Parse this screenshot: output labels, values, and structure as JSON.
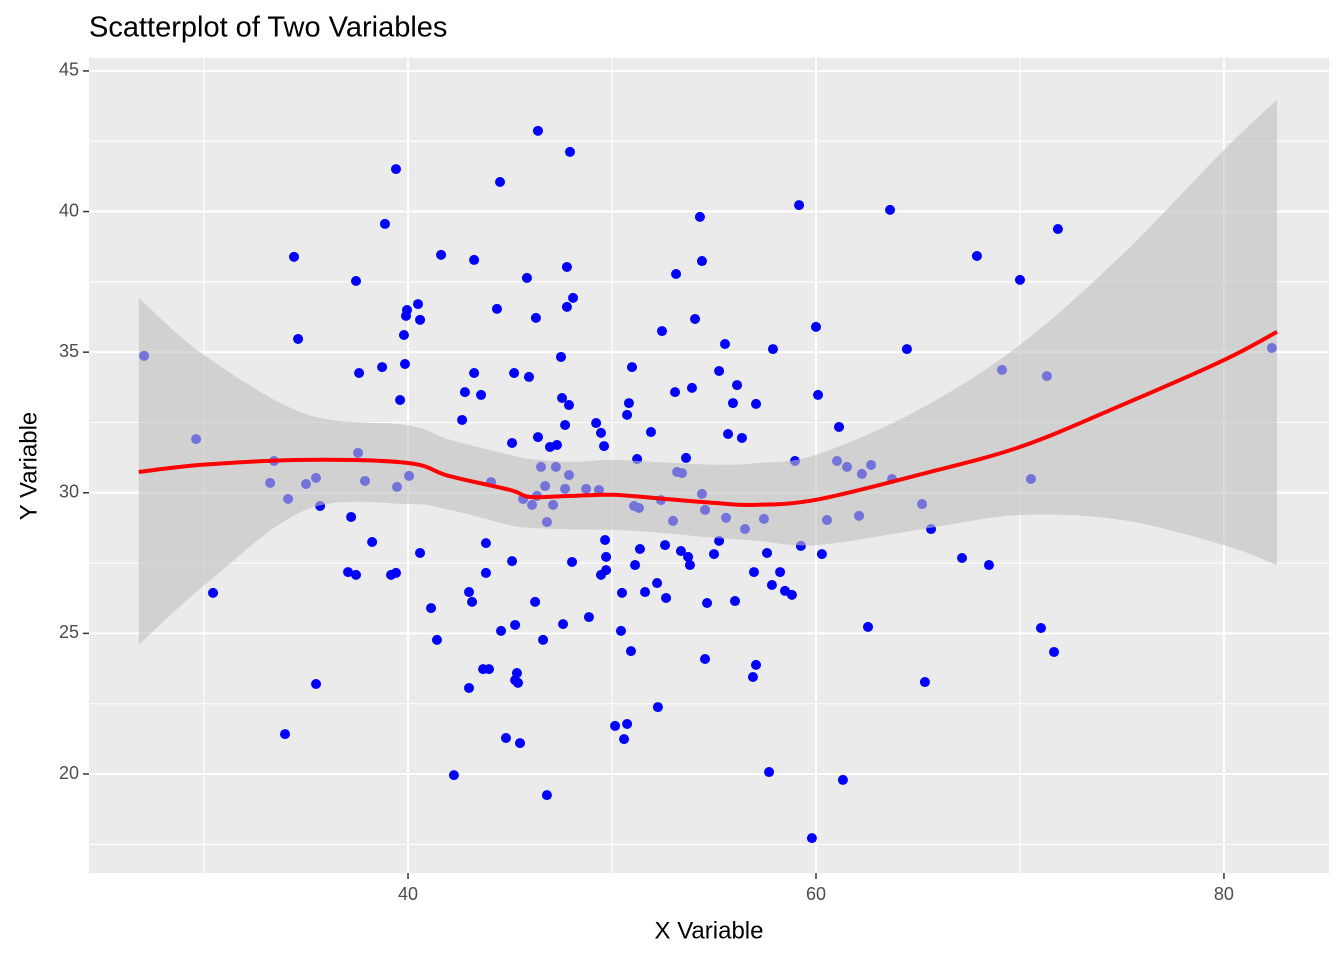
{
  "chart_data": {
    "type": "scatter",
    "title": "Scatterplot of Two Variables",
    "xlabel": "X Variable",
    "ylabel": "Y Variable",
    "color": "#0000ff",
    "grid": true,
    "xlim": [
      24.36,
      85.15
    ],
    "ylim": [
      16.48,
      45.46
    ],
    "xticks": [
      40,
      60,
      80
    ],
    "yticks": [
      20,
      25,
      30,
      35,
      40,
      45
    ],
    "xminorticks": [
      30,
      50,
      70
    ],
    "yminorticks": [
      17.5,
      22.5,
      27.5,
      32.5,
      37.5,
      42.5
    ],
    "x": [
      27.06,
      29.61,
      30.44,
      33.24,
      33.43,
      33.97,
      34.12,
      34.41,
      34.61,
      35.0,
      35.49,
      35.49,
      35.69,
      37.06,
      37.21,
      37.45,
      37.45,
      37.55,
      37.6,
      37.89,
      38.24,
      38.73,
      38.87,
      39.17,
      39.41,
      39.41,
      39.46,
      39.61,
      39.8,
      39.85,
      39.9,
      39.95,
      40.05,
      40.49,
      40.59,
      40.59,
      41.13,
      41.42,
      41.62,
      42.25,
      42.65,
      42.79,
      42.99,
      42.99,
      43.14,
      43.24,
      43.24,
      43.58,
      43.68,
      43.82,
      43.82,
      43.97,
      44.07,
      44.36,
      44.51,
      44.56,
      44.8,
      45.1,
      45.1,
      45.2,
      45.25,
      45.25,
      45.34,
      45.39,
      45.49,
      45.64,
      45.83,
      45.93,
      46.08,
      46.23,
      46.27,
      46.32,
      46.37,
      46.37,
      46.52,
      46.62,
      46.72,
      46.81,
      46.81,
      46.96,
      47.11,
      47.25,
      47.3,
      47.5,
      47.55,
      47.6,
      47.7,
      47.7,
      47.79,
      47.79,
      47.89,
      47.89,
      47.94,
      48.04,
      48.09,
      48.73,
      48.87,
      49.22,
      49.36,
      49.46,
      49.46,
      49.61,
      49.66,
      49.71,
      49.71,
      50.15,
      50.44,
      50.49,
      50.59,
      50.74,
      50.74,
      50.83,
      50.93,
      50.98,
      51.08,
      51.13,
      51.23,
      51.32,
      51.37,
      51.62,
      51.91,
      52.21,
      52.25,
      52.4,
      52.45,
      52.6,
      52.65,
      52.99,
      53.09,
      53.14,
      53.19,
      53.38,
      53.43,
      53.63,
      53.73,
      53.82,
      53.92,
      54.07,
      54.31,
      54.41,
      54.41,
      54.56,
      54.56,
      54.66,
      55.0,
      55.25,
      55.25,
      55.54,
      55.59,
      55.69,
      55.93,
      56.03,
      56.13,
      56.37,
      56.52,
      56.91,
      56.96,
      57.06,
      57.06,
      57.45,
      57.6,
      57.7,
      57.84,
      57.89,
      58.24,
      58.48,
      58.82,
      58.97,
      59.17,
      59.26,
      59.8,
      60.0,
      60.1,
      60.29,
      60.54,
      61.03,
      61.13,
      61.32,
      61.52,
      62.11,
      62.25,
      62.55,
      62.7,
      63.73,
      63.63,
      64.46,
      65.2,
      65.34,
      65.64,
      67.16,
      67.89,
      68.48,
      69.12,
      70.0,
      70.54,
      71.03,
      71.32,
      71.67,
      71.86,
      82.35
    ],
    "values": [
      34.87,
      31.91,
      26.44,
      30.35,
      31.13,
      21.42,
      29.78,
      38.39,
      35.47,
      30.31,
      30.53,
      23.2,
      29.53,
      27.18,
      29.14,
      37.53,
      27.08,
      31.42,
      34.26,
      30.42,
      28.25,
      34.47,
      39.56,
      27.08,
      41.51,
      27.15,
      30.21,
      33.3,
      35.61,
      34.58,
      36.29,
      36.5,
      30.6,
      36.71,
      36.15,
      27.86,
      25.9,
      24.77,
      38.46,
      19.96,
      32.59,
      33.58,
      26.47,
      23.06,
      26.12,
      34.26,
      38.28,
      33.48,
      23.73,
      28.21,
      27.15,
      23.73,
      30.38,
      36.54,
      41.05,
      25.09,
      21.28,
      31.77,
      27.57,
      34.26,
      25.3,
      23.34,
      23.59,
      23.24,
      21.1,
      29.78,
      37.64,
      34.12,
      29.57,
      26.12,
      36.22,
      29.89,
      31.98,
      42.87,
      30.92,
      24.77,
      30.24,
      19.25,
      28.96,
      31.63,
      29.57,
      30.92,
      31.7,
      34.83,
      33.37,
      25.33,
      32.41,
      30.14,
      36.61,
      38.03,
      33.12,
      30.63,
      42.12,
      27.54,
      36.93,
      30.14,
      25.58,
      32.48,
      30.1,
      27.08,
      32.13,
      31.66,
      28.32,
      27.25,
      27.72,
      21.71,
      25.09,
      26.44,
      21.24,
      21.78,
      32.77,
      33.19,
      24.37,
      34.47,
      29.53,
      27.43,
      31.2,
      29.46,
      28.0,
      26.47,
      32.16,
      26.79,
      22.38,
      29.74,
      35.75,
      28.14,
      26.26,
      29.0,
      33.58,
      37.78,
      30.74,
      27.93,
      30.7,
      31.24,
      27.72,
      27.43,
      33.73,
      36.18,
      39.81,
      29.96,
      38.24,
      29.39,
      24.09,
      26.08,
      27.82,
      34.33,
      28.29,
      35.29,
      29.11,
      32.09,
      33.19,
      26.15,
      33.83,
      31.95,
      28.71,
      23.45,
      27.18,
      23.88,
      33.16,
      29.07,
      27.86,
      20.07,
      26.72,
      35.11,
      27.18,
      26.51,
      26.37,
      31.13,
      40.23,
      28.11,
      17.72,
      35.9,
      33.48,
      27.82,
      29.03,
      31.13,
      32.34,
      19.79,
      30.92,
      29.18,
      30.67,
      25.23,
      30.99,
      30.49,
      40.06,
      35.11,
      29.6,
      23.27,
      28.71,
      27.68,
      38.42,
      27.43,
      34.37,
      37.57,
      30.49,
      25.19,
      34.15,
      24.34,
      39.38,
      35.15
    ],
    "smooth": {
      "color": "#ff0000",
      "band_color": "#c0c0c0",
      "x": [
        26.8,
        30,
        35,
        40,
        42,
        45,
        46,
        48,
        50,
        52,
        55,
        57,
        60,
        65,
        70,
        75,
        80,
        82.6
      ],
      "y": [
        30.74,
        31.0,
        31.17,
        31.06,
        30.6,
        30.1,
        29.85,
        29.89,
        29.93,
        29.82,
        29.64,
        29.57,
        29.75,
        30.63,
        31.63,
        33.12,
        34.72,
        35.72
      ],
      "lower": [
        24.59,
        26.7,
        29.4,
        29.6,
        29.4,
        28.85,
        28.75,
        28.7,
        28.68,
        28.6,
        28.4,
        28.3,
        28.14,
        28.68,
        29.21,
        29.03,
        28.14,
        27.43
      ],
      "upper": [
        36.93,
        34.9,
        32.8,
        32.4,
        31.9,
        31.35,
        31.2,
        31.1,
        31.17,
        31.1,
        31.0,
        31.05,
        31.35,
        32.94,
        35.26,
        38.46,
        42.19,
        43.97
      ]
    }
  }
}
